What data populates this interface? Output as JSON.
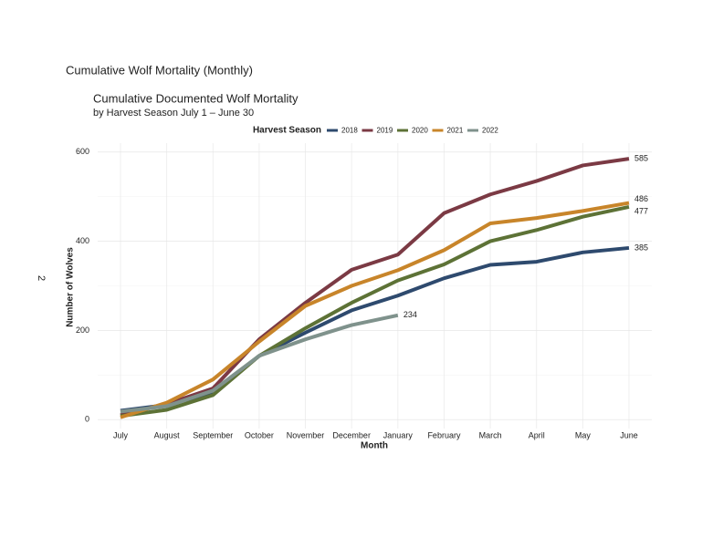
{
  "page_heading": "Cumulative Wolf Mortality (Monthly)",
  "side_label": "2",
  "chart_data": {
    "type": "line",
    "title": "Cumulative Documented Wolf Mortality",
    "subtitle": "by Harvest Season July 1 – June 30",
    "legend_title": "Harvest Season",
    "legend_position": "top",
    "x_label": "Month",
    "y_label": "Number of Wolves",
    "categories": [
      "July",
      "August",
      "September",
      "October",
      "November",
      "December",
      "January",
      "February",
      "March",
      "April",
      "May",
      "June"
    ],
    "ylim": [
      -20,
      620
    ],
    "yticks": [
      0,
      200,
      400,
      600
    ],
    "minor_yticks": [
      100,
      300,
      500
    ],
    "grid": true,
    "end_labels": true,
    "series": [
      {
        "name": "2018",
        "color": "#2e4a6e",
        "values": [
          20,
          33,
          60,
          143,
          195,
          245,
          278,
          317,
          347,
          354,
          375,
          385
        ]
      },
      {
        "name": "2019",
        "color": "#7b3a44",
        "values": [
          10,
          35,
          70,
          180,
          262,
          336,
          370,
          463,
          505,
          535,
          570,
          585
        ]
      },
      {
        "name": "2020",
        "color": "#5d7236",
        "values": [
          8,
          22,
          55,
          143,
          205,
          262,
          312,
          348,
          400,
          425,
          455,
          477
        ]
      },
      {
        "name": "2021",
        "color": "#c8852a",
        "values": [
          5,
          38,
          90,
          175,
          255,
          300,
          335,
          380,
          440,
          452,
          468,
          486
        ]
      },
      {
        "name": "2022",
        "color": "#7f928c",
        "values": [
          18,
          30,
          65,
          143,
          180,
          212,
          234,
          null,
          null,
          null,
          null,
          null
        ]
      }
    ]
  }
}
